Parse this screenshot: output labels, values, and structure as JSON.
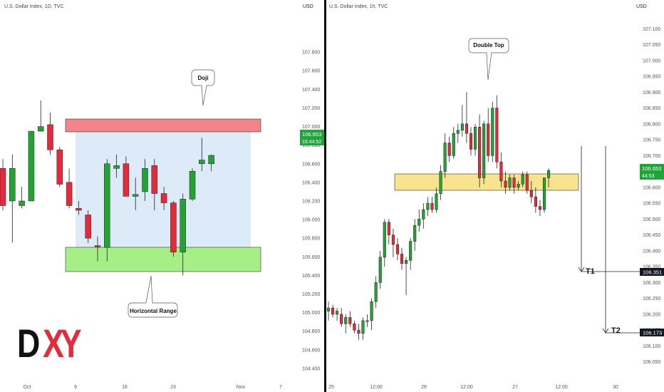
{
  "colors": {
    "up": "#24a234",
    "down": "#e32b3b",
    "resistance": "#f2858a",
    "support": "#a6ef86",
    "range": "#dcebf7",
    "double_top_zone": "#f8e38f",
    "price_tag": "#21a43a",
    "target_tag": "#131722"
  },
  "left_panel": {
    "title": "U.S. Dollar Index, 1D, TVC",
    "currency": "USD",
    "price_tag": {
      "price": "106.653",
      "countdown": "15:44:52"
    },
    "logo_text": {
      "letter1": "D",
      "letter2": "X",
      "letter3": "Y"
    },
    "annotations": {
      "doji": "Doji",
      "horizontal_range": "Horizontal Range"
    }
  },
  "right_panel": {
    "title": "U.S. Dollar Index, 1h, TVC",
    "currency": "USD",
    "price_tag": {
      "price": "106.653",
      "countdown": "44:53"
    },
    "annotations": {
      "double_top": "Double Top",
      "t1": "T1",
      "t2": "T2"
    },
    "target_tags": {
      "t1": "106.351",
      "t2": "106.173"
    }
  },
  "chart_data": [
    {
      "type": "candlestick",
      "title": "U.S. Dollar Index, 1D, TVC",
      "ylabel": "USD",
      "ylim": [
        104.3,
        108.0
      ],
      "y_ticks": [
        "107.800",
        "107.600",
        "107.400",
        "107.200",
        "107.000",
        "106.800",
        "106.600",
        "106.400",
        "106.200",
        "106.000",
        "105.800",
        "105.600",
        "105.400",
        "105.200",
        "105.000",
        "104.800",
        "104.600",
        "104.400"
      ],
      "x_ticks": [
        "Oct",
        "9",
        "16",
        "23",
        "Nov",
        "7"
      ],
      "resistance_zone": [
        106.63,
        106.8
      ],
      "support_zone": [
        105.4,
        105.6
      ],
      "range_box": [
        105.6,
        106.65
      ],
      "current_price": 106.653,
      "candles": [
        {
          "o": 106.55,
          "h": 106.65,
          "l": 106.1,
          "c": 106.15
        },
        {
          "o": 106.2,
          "h": 106.7,
          "l": 105.75,
          "c": 106.55
        },
        {
          "o": 106.15,
          "h": 106.35,
          "l": 106.12,
          "c": 106.2
        },
        {
          "o": 106.2,
          "h": 106.95,
          "l": 106.2,
          "c": 106.95
        },
        {
          "o": 106.95,
          "h": 107.28,
          "l": 106.95,
          "c": 107.0
        },
        {
          "o": 107.02,
          "h": 107.15,
          "l": 106.7,
          "c": 106.75
        },
        {
          "o": 106.75,
          "h": 106.78,
          "l": 106.35,
          "c": 106.38
        },
        {
          "o": 106.4,
          "h": 106.55,
          "l": 106.12,
          "c": 106.15
        },
        {
          "o": 106.12,
          "h": 106.2,
          "l": 106.05,
          "c": 106.1
        },
        {
          "o": 106.05,
          "h": 106.1,
          "l": 105.75,
          "c": 105.8
        },
        {
          "o": 105.72,
          "h": 105.82,
          "l": 105.55,
          "c": 105.71
        },
        {
          "o": 105.7,
          "h": 106.65,
          "l": 105.55,
          "c": 106.6
        },
        {
          "o": 106.55,
          "h": 106.7,
          "l": 106.45,
          "c": 106.58
        },
        {
          "o": 106.6,
          "h": 106.68,
          "l": 106.25,
          "c": 106.25
        },
        {
          "o": 106.25,
          "h": 106.45,
          "l": 106.1,
          "c": 106.27
        },
        {
          "o": 106.3,
          "h": 106.65,
          "l": 106.2,
          "c": 106.55
        },
        {
          "o": 106.58,
          "h": 106.65,
          "l": 106.1,
          "c": 106.28
        },
        {
          "o": 106.28,
          "h": 106.35,
          "l": 106.1,
          "c": 106.18
        },
        {
          "o": 106.18,
          "h": 106.2,
          "l": 105.6,
          "c": 105.65
        },
        {
          "o": 105.65,
          "h": 106.28,
          "l": 105.4,
          "c": 106.22
        },
        {
          "o": 106.22,
          "h": 106.55,
          "l": 106.2,
          "c": 106.52
        },
        {
          "o": 106.6,
          "h": 106.88,
          "l": 106.52,
          "c": 106.64
        },
        {
          "o": 106.6,
          "h": 106.7,
          "l": 106.52,
          "c": 106.69
        }
      ]
    },
    {
      "type": "candlestick",
      "title": "U.S. Dollar Index, 1h, TVC",
      "ylabel": "USD",
      "ylim": [
        106.0,
        107.15
      ],
      "y_ticks": [
        "107.100",
        "107.050",
        "107.000",
        "106.950",
        "106.900",
        "106.850",
        "106.800",
        "106.750",
        "106.700",
        "106.650",
        "106.600",
        "106.550",
        "106.500",
        "106.450",
        "106.400",
        "106.350",
        "106.300",
        "106.250",
        "106.200",
        "106.150",
        "106.100",
        "106.050"
      ],
      "x_ticks": [
        "25",
        "12:00",
        "26",
        "12:00",
        "27",
        "12:00",
        "30"
      ],
      "double_top_zone": [
        106.6,
        106.635
      ],
      "current_price": 106.653,
      "targets": {
        "T1": 106.351,
        "T2": 106.173
      },
      "candles": [
        {
          "o": 106.21,
          "h": 106.24,
          "l": 106.18,
          "c": 106.22
        },
        {
          "o": 106.22,
          "h": 106.23,
          "l": 106.19,
          "c": 106.2
        },
        {
          "o": 106.2,
          "h": 106.22,
          "l": 106.18,
          "c": 106.21
        },
        {
          "o": 106.2,
          "h": 106.22,
          "l": 106.16,
          "c": 106.17
        },
        {
          "o": 106.17,
          "h": 106.2,
          "l": 106.14,
          "c": 106.19
        },
        {
          "o": 106.19,
          "h": 106.21,
          "l": 106.16,
          "c": 106.17
        },
        {
          "o": 106.17,
          "h": 106.18,
          "l": 106.14,
          "c": 106.15
        },
        {
          "o": 106.15,
          "h": 106.17,
          "l": 106.12,
          "c": 106.14
        },
        {
          "o": 106.14,
          "h": 106.19,
          "l": 106.12,
          "c": 106.18
        },
        {
          "o": 106.18,
          "h": 106.2,
          "l": 106.16,
          "c": 106.18
        },
        {
          "o": 106.18,
          "h": 106.25,
          "l": 106.15,
          "c": 106.24
        },
        {
          "o": 106.24,
          "h": 106.32,
          "l": 106.22,
          "c": 106.3
        },
        {
          "o": 106.3,
          "h": 106.4,
          "l": 106.28,
          "c": 106.38
        },
        {
          "o": 106.38,
          "h": 106.5,
          "l": 106.35,
          "c": 106.49
        },
        {
          "o": 106.49,
          "h": 106.5,
          "l": 106.42,
          "c": 106.45
        },
        {
          "o": 106.45,
          "h": 106.47,
          "l": 106.38,
          "c": 106.42
        },
        {
          "o": 106.42,
          "h": 106.44,
          "l": 106.37,
          "c": 106.39
        },
        {
          "o": 106.39,
          "h": 106.41,
          "l": 106.34,
          "c": 106.36
        },
        {
          "o": 106.36,
          "h": 106.38,
          "l": 106.26,
          "c": 106.37
        },
        {
          "o": 106.37,
          "h": 106.44,
          "l": 106.34,
          "c": 106.43
        },
        {
          "o": 106.43,
          "h": 106.5,
          "l": 106.4,
          "c": 106.48
        },
        {
          "o": 106.48,
          "h": 106.53,
          "l": 106.46,
          "c": 106.5
        },
        {
          "o": 106.5,
          "h": 106.55,
          "l": 106.47,
          "c": 106.53
        },
        {
          "o": 106.53,
          "h": 106.57,
          "l": 106.51,
          "c": 106.55
        },
        {
          "o": 106.55,
          "h": 106.57,
          "l": 106.52,
          "c": 106.53
        },
        {
          "o": 106.53,
          "h": 106.6,
          "l": 106.52,
          "c": 106.58
        },
        {
          "o": 106.58,
          "h": 106.67,
          "l": 106.56,
          "c": 106.65
        },
        {
          "o": 106.65,
          "h": 106.77,
          "l": 106.63,
          "c": 106.74
        },
        {
          "o": 106.74,
          "h": 106.76,
          "l": 106.68,
          "c": 106.7
        },
        {
          "o": 106.7,
          "h": 106.79,
          "l": 106.69,
          "c": 106.77
        },
        {
          "o": 106.77,
          "h": 106.8,
          "l": 106.74,
          "c": 106.78
        },
        {
          "o": 106.78,
          "h": 106.86,
          "l": 106.76,
          "c": 106.8
        },
        {
          "o": 106.8,
          "h": 106.9,
          "l": 106.74,
          "c": 106.77
        },
        {
          "o": 106.77,
          "h": 106.79,
          "l": 106.7,
          "c": 106.72
        },
        {
          "o": 106.72,
          "h": 106.8,
          "l": 106.7,
          "c": 106.79
        },
        {
          "o": 106.79,
          "h": 106.83,
          "l": 106.6,
          "c": 106.63
        },
        {
          "o": 106.63,
          "h": 106.81,
          "l": 106.61,
          "c": 106.8
        },
        {
          "o": 106.8,
          "h": 106.85,
          "l": 106.68,
          "c": 106.7
        },
        {
          "o": 106.7,
          "h": 106.87,
          "l": 106.68,
          "c": 106.85
        },
        {
          "o": 106.85,
          "h": 106.89,
          "l": 106.66,
          "c": 106.68
        },
        {
          "o": 106.68,
          "h": 106.71,
          "l": 106.6,
          "c": 106.62
        },
        {
          "o": 106.62,
          "h": 106.65,
          "l": 106.58,
          "c": 106.6
        },
        {
          "o": 106.6,
          "h": 106.64,
          "l": 106.59,
          "c": 106.63
        },
        {
          "o": 106.63,
          "h": 106.64,
          "l": 106.58,
          "c": 106.6
        },
        {
          "o": 106.6,
          "h": 106.62,
          "l": 106.59,
          "c": 106.61
        },
        {
          "o": 106.61,
          "h": 106.65,
          "l": 106.6,
          "c": 106.64
        },
        {
          "o": 106.64,
          "h": 106.65,
          "l": 106.58,
          "c": 106.59
        },
        {
          "o": 106.59,
          "h": 106.62,
          "l": 106.55,
          "c": 106.57
        },
        {
          "o": 106.57,
          "h": 106.6,
          "l": 106.52,
          "c": 106.54
        },
        {
          "o": 106.54,
          "h": 106.56,
          "l": 106.51,
          "c": 106.53
        },
        {
          "o": 106.53,
          "h": 106.63,
          "l": 106.52,
          "c": 106.63
        },
        {
          "o": 106.63,
          "h": 106.66,
          "l": 106.6,
          "c": 106.653
        }
      ]
    }
  ]
}
